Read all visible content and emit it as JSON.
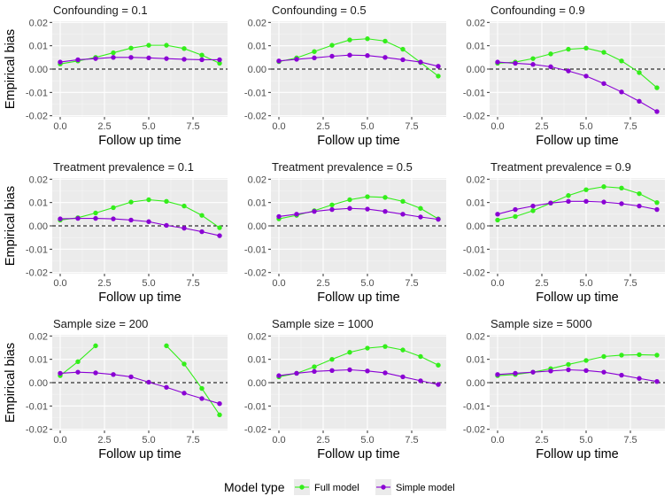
{
  "chart_data": {
    "type": "line",
    "facets": [
      {
        "title": "Confounding = 0.1",
        "x": [
          0,
          1,
          2,
          3,
          4,
          5,
          6,
          7,
          8,
          9
        ],
        "series": [
          {
            "name": "Full model",
            "values": [
              0.0022,
              0.0035,
              0.005,
              0.007,
              0.009,
              0.0102,
              0.0102,
              0.0088,
              0.006,
              0.0025
            ]
          },
          {
            "name": "Simple model",
            "values": [
              0.003,
              0.004,
              0.0045,
              0.005,
              0.005,
              0.0048,
              0.0045,
              0.0042,
              0.004,
              0.004
            ]
          }
        ]
      },
      {
        "title": "Confounding = 0.5",
        "x": [
          0,
          1,
          2,
          3,
          4,
          5,
          6,
          7,
          8,
          9
        ],
        "series": [
          {
            "name": "Full model",
            "values": [
              0.0032,
              0.0048,
              0.0075,
              0.0102,
              0.0125,
              0.013,
              0.012,
              0.0085,
              0.0028,
              -0.003
            ]
          },
          {
            "name": "Simple model",
            "values": [
              0.0035,
              0.0042,
              0.0048,
              0.0055,
              0.006,
              0.0058,
              0.005,
              0.004,
              0.003,
              0.0012
            ]
          }
        ]
      },
      {
        "title": "Confounding = 0.9",
        "x": [
          0,
          1,
          2,
          3,
          4,
          5,
          6,
          7,
          8,
          9
        ],
        "series": [
          {
            "name": "Full model",
            "values": [
              0.0025,
              0.003,
              0.0045,
              0.0065,
              0.0085,
              0.009,
              0.0072,
              0.0035,
              -0.0015,
              -0.008
            ]
          },
          {
            "name": "Simple model",
            "values": [
              0.003,
              0.0025,
              0.002,
              0.001,
              -0.0008,
              -0.003,
              -0.0062,
              -0.0098,
              -0.0138,
              -0.0182
            ]
          }
        ]
      },
      {
        "title": "Treatment prevalence = 0.1",
        "x": [
          0,
          1,
          2,
          3,
          4,
          5,
          6,
          7,
          8,
          9
        ],
        "series": [
          {
            "name": "Full model",
            "values": [
              0.0025,
              0.0035,
              0.0055,
              0.0078,
              0.0102,
              0.0112,
              0.0105,
              0.0085,
              0.0045,
              -0.0008
            ]
          },
          {
            "name": "Simple model",
            "values": [
              0.003,
              0.0032,
              0.0032,
              0.003,
              0.0025,
              0.0018,
              0.0002,
              -0.001,
              -0.0025,
              -0.0042
            ]
          }
        ]
      },
      {
        "title": "Treatment prevalence = 0.5",
        "x": [
          0,
          1,
          2,
          3,
          4,
          5,
          6,
          7,
          8,
          9
        ],
        "series": [
          {
            "name": "Full model",
            "values": [
              0.003,
              0.0045,
              0.0065,
              0.009,
              0.0112,
              0.0125,
              0.0122,
              0.0105,
              0.0075,
              0.003
            ]
          },
          {
            "name": "Simple model",
            "values": [
              0.004,
              0.005,
              0.0062,
              0.007,
              0.0075,
              0.0072,
              0.0062,
              0.005,
              0.0038,
              0.0028
            ]
          }
        ]
      },
      {
        "title": "Treatment prevalence = 0.9",
        "x": [
          0,
          1,
          2,
          3,
          4,
          5,
          6,
          7,
          8,
          9
        ],
        "series": [
          {
            "name": "Full model",
            "values": [
              0.0025,
              0.004,
              0.0065,
              0.0098,
              0.013,
              0.0155,
              0.0168,
              0.0162,
              0.0138,
              0.01
            ]
          },
          {
            "name": "Simple model",
            "values": [
              0.005,
              0.007,
              0.0085,
              0.0098,
              0.0105,
              0.0105,
              0.0102,
              0.0095,
              0.0085,
              0.007
            ]
          }
        ]
      },
      {
        "title": "Sample size = 200",
        "x": [
          0,
          1,
          2,
          3,
          4,
          5,
          6,
          7,
          8,
          9
        ],
        "series": [
          {
            "name": "Full model",
            "values": [
              0.003,
              0.009,
              0.0158,
              null,
              null,
              null,
              0.0158,
              0.008,
              -0.0025,
              -0.0138
            ]
          },
          {
            "name": "Simple model",
            "values": [
              0.004,
              0.0045,
              0.0042,
              0.0035,
              0.0025,
              0.0002,
              -0.002,
              -0.0045,
              -0.0068,
              -0.009
            ]
          }
        ]
      },
      {
        "title": "Sample size = 1000",
        "x": [
          0,
          1,
          2,
          3,
          4,
          5,
          6,
          7,
          8,
          9
        ],
        "series": [
          {
            "name": "Full model",
            "values": [
              0.0025,
              0.004,
              0.0068,
              0.01,
              0.013,
              0.0148,
              0.0155,
              0.014,
              0.0112,
              0.0075
            ]
          },
          {
            "name": "Simple model",
            "values": [
              0.003,
              0.004,
              0.0048,
              0.0052,
              0.0055,
              0.005,
              0.0042,
              0.0025,
              0.0008,
              -0.0008
            ]
          }
        ]
      },
      {
        "title": "Sample size = 5000",
        "x": [
          0,
          1,
          2,
          3,
          4,
          5,
          6,
          7,
          8,
          9
        ],
        "series": [
          {
            "name": "Full model",
            "values": [
              0.003,
              0.0035,
              0.0045,
              0.006,
              0.0078,
              0.0095,
              0.0112,
              0.0118,
              0.012,
              0.0118
            ]
          },
          {
            "name": "Simple model",
            "values": [
              0.0035,
              0.004,
              0.0045,
              0.005,
              0.0055,
              0.0052,
              0.0045,
              0.0032,
              0.0018,
              0.0005
            ]
          }
        ]
      }
    ],
    "xlabel": "Follow up time",
    "ylabel": "Empirical bias",
    "xlim": [
      -0.45,
      9.45
    ],
    "ylim": [
      -0.0205,
      0.0205
    ],
    "xticks": [
      0,
      2.5,
      5,
      7.5
    ],
    "xtick_labels": [
      "0.0",
      "2.5",
      "5.0",
      "7.5"
    ],
    "yticks": [
      0.02,
      0.01,
      0,
      -0.01,
      -0.02
    ],
    "ytick_labels": [
      "0.02",
      "0.01",
      "0.00",
      "-0.01",
      "-0.02"
    ],
    "reference_line_y": 0,
    "grid": true,
    "legend": {
      "title": "Model type",
      "position": "bottom",
      "entries": [
        "Full model",
        "Simple model"
      ]
    },
    "colors": {
      "Full model": "#33ee1a",
      "Simple model": "#8a00d4",
      "panel_background": "#ebebeb",
      "grid_major": "#ffffff",
      "grid_minor": "#f5f5f5"
    }
  }
}
